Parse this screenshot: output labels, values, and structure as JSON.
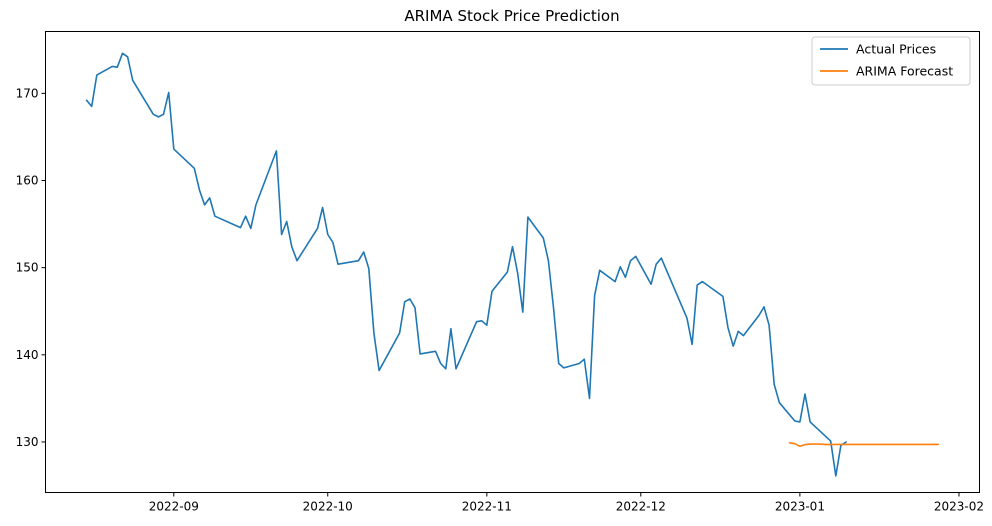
{
  "chart_data": {
    "type": "line",
    "title": "ARIMA Stock Price Prediction",
    "xlabel": "",
    "ylabel": "",
    "x_axis_type": "date",
    "xlim": [
      "2022-08-07",
      "2023-02-05"
    ],
    "ylim": [
      124.2,
      177.1
    ],
    "x_ticks": [
      "2022-09-01",
      "2022-10-01",
      "2022-11-01",
      "2022-12-01",
      "2023-01-01",
      "2023-02-01"
    ],
    "x_tick_labels": [
      "2022-09",
      "2022-10",
      "2022-11",
      "2022-12",
      "2023-01",
      "2023-02"
    ],
    "y_ticks": [
      130,
      140,
      150,
      160,
      170
    ],
    "y_tick_labels": [
      "130",
      "140",
      "150",
      "160",
      "170"
    ],
    "grid": false,
    "legend_position": "top-right",
    "series": [
      {
        "name": "Actual Prices",
        "color": "#1f77b4",
        "points": [
          [
            "2022-08-15",
            169.2
          ],
          [
            "2022-08-16",
            168.5
          ],
          [
            "2022-08-17",
            172.1
          ],
          [
            "2022-08-20",
            173.1
          ],
          [
            "2022-08-21",
            173.0
          ],
          [
            "2022-08-22",
            174.6
          ],
          [
            "2022-08-23",
            174.2
          ],
          [
            "2022-08-24",
            171.5
          ],
          [
            "2022-08-28",
            167.6
          ],
          [
            "2022-08-29",
            167.3
          ],
          [
            "2022-08-30",
            167.6
          ],
          [
            "2022-08-31",
            170.1
          ],
          [
            "2022-09-01",
            163.6
          ],
          [
            "2022-09-05",
            161.4
          ],
          [
            "2022-09-06",
            158.9
          ],
          [
            "2022-09-07",
            157.2
          ],
          [
            "2022-09-08",
            158.0
          ],
          [
            "2022-09-09",
            155.9
          ],
          [
            "2022-09-14",
            154.6
          ],
          [
            "2022-09-15",
            155.9
          ],
          [
            "2022-09-16",
            154.5
          ],
          [
            "2022-09-17",
            157.2
          ],
          [
            "2022-09-21",
            163.4
          ],
          [
            "2022-09-22",
            153.8
          ],
          [
            "2022-09-23",
            155.3
          ],
          [
            "2022-09-24",
            152.4
          ],
          [
            "2022-09-25",
            150.8
          ],
          [
            "2022-09-29",
            154.5
          ],
          [
            "2022-09-30",
            156.9
          ],
          [
            "2022-10-01",
            153.8
          ],
          [
            "2022-10-02",
            152.9
          ],
          [
            "2022-10-03",
            150.4
          ],
          [
            "2022-10-07",
            150.8
          ],
          [
            "2022-10-08",
            151.8
          ],
          [
            "2022-10-09",
            149.9
          ],
          [
            "2022-10-10",
            142.5
          ],
          [
            "2022-10-11",
            138.2
          ],
          [
            "2022-10-15",
            142.5
          ],
          [
            "2022-10-16",
            146.1
          ],
          [
            "2022-10-17",
            146.4
          ],
          [
            "2022-10-18",
            145.4
          ],
          [
            "2022-10-19",
            140.1
          ],
          [
            "2022-10-22",
            140.4
          ],
          [
            "2022-10-23",
            139.0
          ],
          [
            "2022-10-24",
            138.4
          ],
          [
            "2022-10-25",
            143.0
          ],
          [
            "2022-10-26",
            138.4
          ],
          [
            "2022-10-30",
            143.8
          ],
          [
            "2022-10-31",
            143.9
          ],
          [
            "2022-11-01",
            143.4
          ],
          [
            "2022-11-02",
            147.3
          ],
          [
            "2022-11-05",
            149.5
          ],
          [
            "2022-11-06",
            152.4
          ],
          [
            "2022-11-07",
            149.4
          ],
          [
            "2022-11-08",
            144.9
          ],
          [
            "2022-11-09",
            155.8
          ],
          [
            "2022-11-12",
            153.4
          ],
          [
            "2022-11-13",
            150.8
          ],
          [
            "2022-11-14",
            145.3
          ],
          [
            "2022-11-15",
            139.0
          ],
          [
            "2022-11-16",
            138.5
          ],
          [
            "2022-11-19",
            139.0
          ],
          [
            "2022-11-20",
            139.5
          ],
          [
            "2022-11-21",
            135.0
          ],
          [
            "2022-11-22",
            146.8
          ],
          [
            "2022-11-23",
            149.7
          ],
          [
            "2022-11-26",
            148.4
          ],
          [
            "2022-11-27",
            150.1
          ],
          [
            "2022-11-28",
            148.9
          ],
          [
            "2022-11-29",
            150.8
          ],
          [
            "2022-11-30",
            151.3
          ],
          [
            "2022-12-03",
            148.1
          ],
          [
            "2022-12-04",
            150.4
          ],
          [
            "2022-12-05",
            151.1
          ],
          [
            "2022-12-10",
            144.2
          ],
          [
            "2022-12-11",
            141.2
          ],
          [
            "2022-12-12",
            148.0
          ],
          [
            "2022-12-13",
            148.4
          ],
          [
            "2022-12-17",
            146.7
          ],
          [
            "2022-12-18",
            143.1
          ],
          [
            "2022-12-19",
            141.0
          ],
          [
            "2022-12-20",
            142.7
          ],
          [
            "2022-12-21",
            142.2
          ],
          [
            "2022-12-24",
            144.5
          ],
          [
            "2022-12-25",
            145.5
          ],
          [
            "2022-12-26",
            143.4
          ],
          [
            "2022-12-27",
            136.6
          ],
          [
            "2022-12-28",
            134.5
          ],
          [
            "2022-12-31",
            132.4
          ],
          [
            "2023-01-01",
            132.3
          ],
          [
            "2023-01-02",
            135.5
          ],
          [
            "2023-01-03",
            132.3
          ],
          [
            "2023-01-07",
            130.1
          ],
          [
            "2023-01-08",
            126.1
          ],
          [
            "2023-01-09",
            129.6
          ],
          [
            "2023-01-10",
            130.0
          ]
        ]
      },
      {
        "name": "ARIMA Forecast",
        "color": "#ff7f0e",
        "points": [
          [
            "2022-12-30",
            129.9
          ],
          [
            "2022-12-31",
            129.8
          ],
          [
            "2023-01-01",
            129.5
          ],
          [
            "2023-01-02",
            129.7
          ],
          [
            "2023-01-03",
            129.75
          ],
          [
            "2023-01-05",
            129.75
          ],
          [
            "2023-01-06",
            129.7
          ],
          [
            "2023-01-08",
            129.72
          ],
          [
            "2023-01-15",
            129.72
          ],
          [
            "2023-01-28",
            129.72
          ]
        ]
      }
    ]
  }
}
